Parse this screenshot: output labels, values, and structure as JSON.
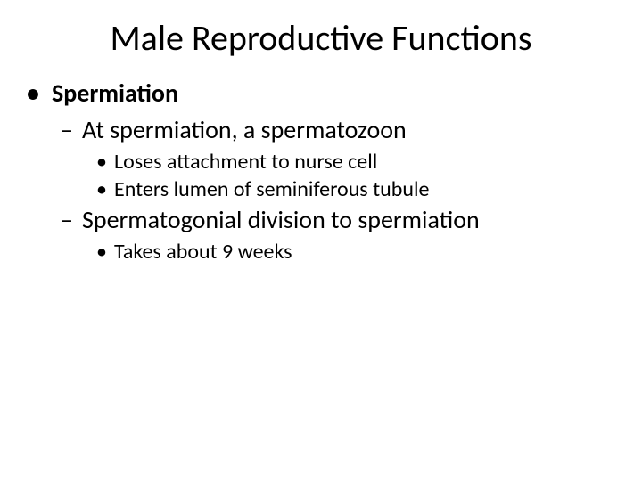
{
  "title": "Male Reproductive Functions",
  "bullets": {
    "l1_1": "Spermiation",
    "l2_1": "At spermiation, a spermatozoon",
    "l3_1": "Loses attachment to nurse cell",
    "l3_2": "Enters lumen of seminiferous tubule",
    "l2_2": "Spermatogonial division to spermiation",
    "l3_3": "Takes about 9 weeks"
  },
  "glyphs": {
    "disc": "•",
    "dash": "–"
  },
  "colors": {
    "text": "#000000",
    "background": "#ffffff"
  },
  "fonts": {
    "title_size": 40,
    "l1_size": 28,
    "l2_size": 28,
    "l3_size": 24
  }
}
